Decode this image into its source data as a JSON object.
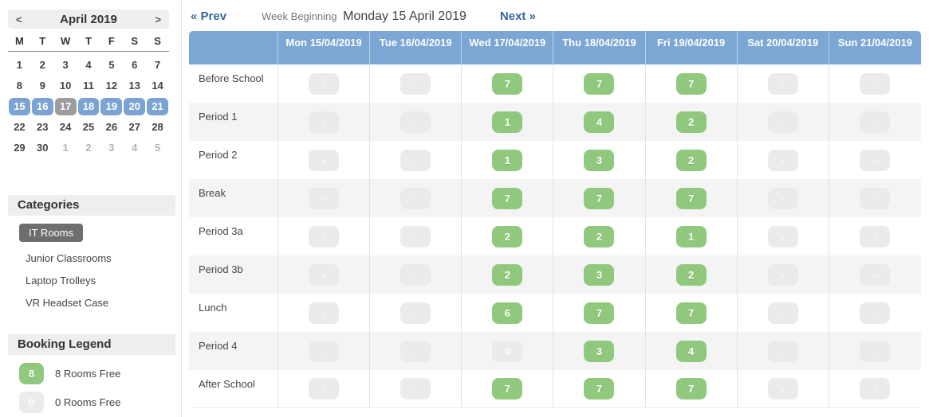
{
  "sidebar": {
    "calendar": {
      "prev_label": "<",
      "next_label": ">",
      "title": "April 2019",
      "weekdays": [
        "M",
        "T",
        "W",
        "T",
        "F",
        "S",
        "S"
      ],
      "weeks": [
        [
          {
            "d": "1"
          },
          {
            "d": "2"
          },
          {
            "d": "3"
          },
          {
            "d": "4"
          },
          {
            "d": "5"
          },
          {
            "d": "6"
          },
          {
            "d": "7"
          }
        ],
        [
          {
            "d": "8"
          },
          {
            "d": "9"
          },
          {
            "d": "10"
          },
          {
            "d": "11"
          },
          {
            "d": "12"
          },
          {
            "d": "13"
          },
          {
            "d": "14"
          }
        ],
        [
          {
            "d": "15",
            "s": "sel"
          },
          {
            "d": "16",
            "s": "sel"
          },
          {
            "d": "17",
            "s": "today"
          },
          {
            "d": "18",
            "s": "sel"
          },
          {
            "d": "19",
            "s": "sel"
          },
          {
            "d": "20",
            "s": "sel"
          },
          {
            "d": "21",
            "s": "sel"
          }
        ],
        [
          {
            "d": "22"
          },
          {
            "d": "23"
          },
          {
            "d": "24"
          },
          {
            "d": "25"
          },
          {
            "d": "26"
          },
          {
            "d": "27"
          },
          {
            "d": "28"
          }
        ],
        [
          {
            "d": "29"
          },
          {
            "d": "30"
          },
          {
            "d": "1",
            "s": "muted"
          },
          {
            "d": "2",
            "s": "muted"
          },
          {
            "d": "3",
            "s": "muted"
          },
          {
            "d": "4",
            "s": "muted"
          },
          {
            "d": "5",
            "s": "muted"
          }
        ]
      ]
    },
    "categories": {
      "title": "Categories",
      "items": [
        {
          "label": "IT Rooms",
          "selected": true
        },
        {
          "label": "Junior Classrooms",
          "selected": false
        },
        {
          "label": "Laptop Trolleys",
          "selected": false
        },
        {
          "label": "VR Headset Case",
          "selected": false
        }
      ]
    },
    "legend": {
      "title": "Booking Legend",
      "items": [
        {
          "badge": "8",
          "type": "free",
          "label": "8 Rooms Free"
        },
        {
          "badge": "0",
          "type": "none",
          "label": "0 Rooms Free"
        }
      ]
    }
  },
  "week_nav": {
    "prev_label": "« Prev",
    "week_beginning_label": "Week Beginning",
    "week_beginning_date": "Monday 15 April 2019",
    "next_label": "Next »"
  },
  "grid": {
    "columns": [
      "Mon 15/04/2019",
      "Tue 16/04/2019",
      "Wed 17/04/2019",
      "Thu 18/04/2019",
      "Fri 19/04/2019",
      "Sat 20/04/2019",
      "Sun 21/04/2019"
    ],
    "rows": [
      {
        "label": "Before School",
        "cells": [
          "-",
          "-",
          "7",
          "7",
          "7",
          "-",
          "-"
        ]
      },
      {
        "label": "Period 1",
        "cells": [
          "-",
          "-",
          "1",
          "4",
          "2",
          "-",
          "-"
        ]
      },
      {
        "label": "Period 2",
        "cells": [
          "-",
          "-",
          "1",
          "3",
          "2",
          "-",
          "-"
        ]
      },
      {
        "label": "Break",
        "cells": [
          "-",
          "-",
          "7",
          "7",
          "7",
          "-",
          "-"
        ]
      },
      {
        "label": "Period 3a",
        "cells": [
          "-",
          "-",
          "2",
          "2",
          "1",
          "-",
          "-"
        ]
      },
      {
        "label": "Period 3b",
        "cells": [
          "-",
          "-",
          "2",
          "3",
          "2",
          "-",
          "-"
        ]
      },
      {
        "label": "Lunch",
        "cells": [
          "-",
          "-",
          "6",
          "7",
          "7",
          "-",
          "-"
        ]
      },
      {
        "label": "Period 4",
        "cells": [
          "-",
          "-",
          "0",
          "3",
          "4",
          "-",
          "-"
        ]
      },
      {
        "label": "After School",
        "cells": [
          "-",
          "-",
          "7",
          "7",
          "7",
          "-",
          "-"
        ]
      }
    ]
  },
  "colors": {
    "header_blue": "#7CA6D3",
    "selected_day_blue": "#7BA4D4",
    "today_gray": "#9C9C9C",
    "badge_green": "#90C97E",
    "badge_gray": "#EBEBEB",
    "link_blue": "#35689F",
    "selected_category_bg": "#6E6E6E"
  }
}
